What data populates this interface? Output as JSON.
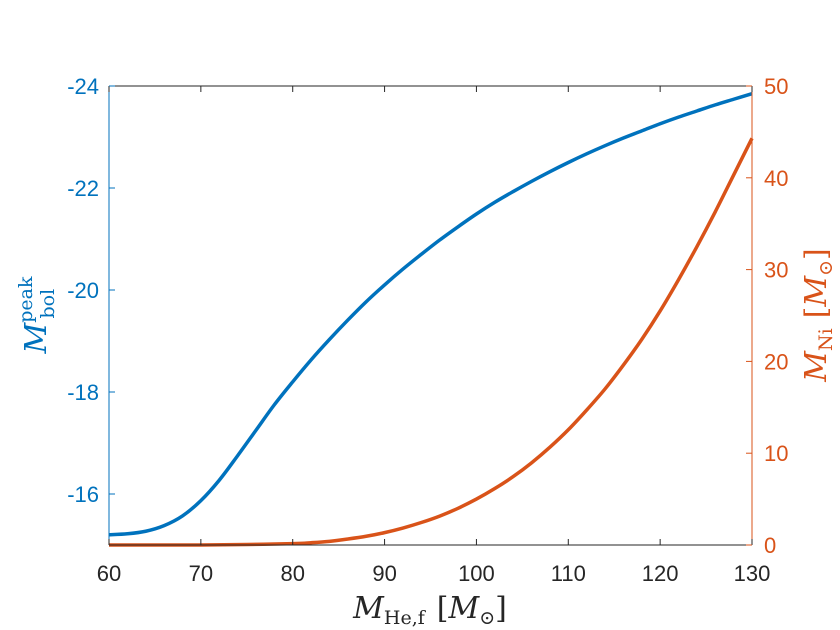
{
  "chart_data": {
    "type": "line",
    "colors": {
      "left": "#0072BD",
      "right": "#D95319",
      "axis": "#262626"
    },
    "xlabel": {
      "main": "M",
      "sub": "He,f",
      "unit_pre": "[",
      "unit_main": "M",
      "unit_sub": "⊙",
      "unit_post": "]"
    },
    "ylabel_left": {
      "main": "M",
      "sup": "peak",
      "sub": "bol"
    },
    "ylabel_right": {
      "main": "M",
      "sub": "Ni",
      "unit_pre": "[",
      "unit_main": "M",
      "unit_sub": "⊙",
      "unit_post": "]"
    },
    "xlim": [
      60,
      130
    ],
    "xticks": [
      60,
      70,
      80,
      90,
      100,
      110,
      120,
      130
    ],
    "ylim_left": [
      -15,
      -24
    ],
    "yticks_left": [
      -16,
      -18,
      -20,
      -22,
      -24
    ],
    "ylim_right": [
      0,
      50
    ],
    "yticks_right": [
      0,
      10,
      20,
      30,
      40,
      50
    ],
    "series": [
      {
        "axis": "left",
        "x": [
          60,
          62,
          64,
          66,
          68,
          70,
          72,
          74,
          76,
          78,
          80,
          82,
          84,
          86,
          88,
          90,
          92,
          94,
          96,
          98,
          100,
          102,
          104,
          106,
          108,
          110,
          112,
          114,
          116,
          118,
          120,
          122,
          124,
          126,
          128,
          130
        ],
        "y": [
          -15.2,
          -15.22,
          -15.27,
          -15.38,
          -15.57,
          -15.87,
          -16.27,
          -16.75,
          -17.25,
          -17.75,
          -18.2,
          -18.63,
          -19.03,
          -19.41,
          -19.77,
          -20.1,
          -20.41,
          -20.7,
          -20.98,
          -21.24,
          -21.49,
          -21.72,
          -21.93,
          -22.13,
          -22.32,
          -22.5,
          -22.67,
          -22.83,
          -22.98,
          -23.12,
          -23.26,
          -23.39,
          -23.51,
          -23.63,
          -23.74,
          -23.85
        ]
      },
      {
        "axis": "right",
        "x": [
          60,
          65,
          70,
          75,
          80,
          82,
          84,
          86,
          88,
          90,
          92,
          94,
          96,
          98,
          100,
          102,
          104,
          106,
          108,
          110,
          112,
          114,
          116,
          118,
          120,
          122,
          124,
          126,
          128,
          130
        ],
        "y": [
          0,
          0,
          0,
          0.05,
          0.15,
          0.25,
          0.4,
          0.65,
          0.95,
          1.35,
          1.85,
          2.45,
          3.15,
          4.0,
          5.0,
          6.15,
          7.45,
          8.95,
          10.65,
          12.55,
          14.7,
          17.0,
          19.6,
          22.4,
          25.5,
          28.9,
          32.5,
          36.3,
          40.3,
          44.3
        ]
      }
    ]
  }
}
